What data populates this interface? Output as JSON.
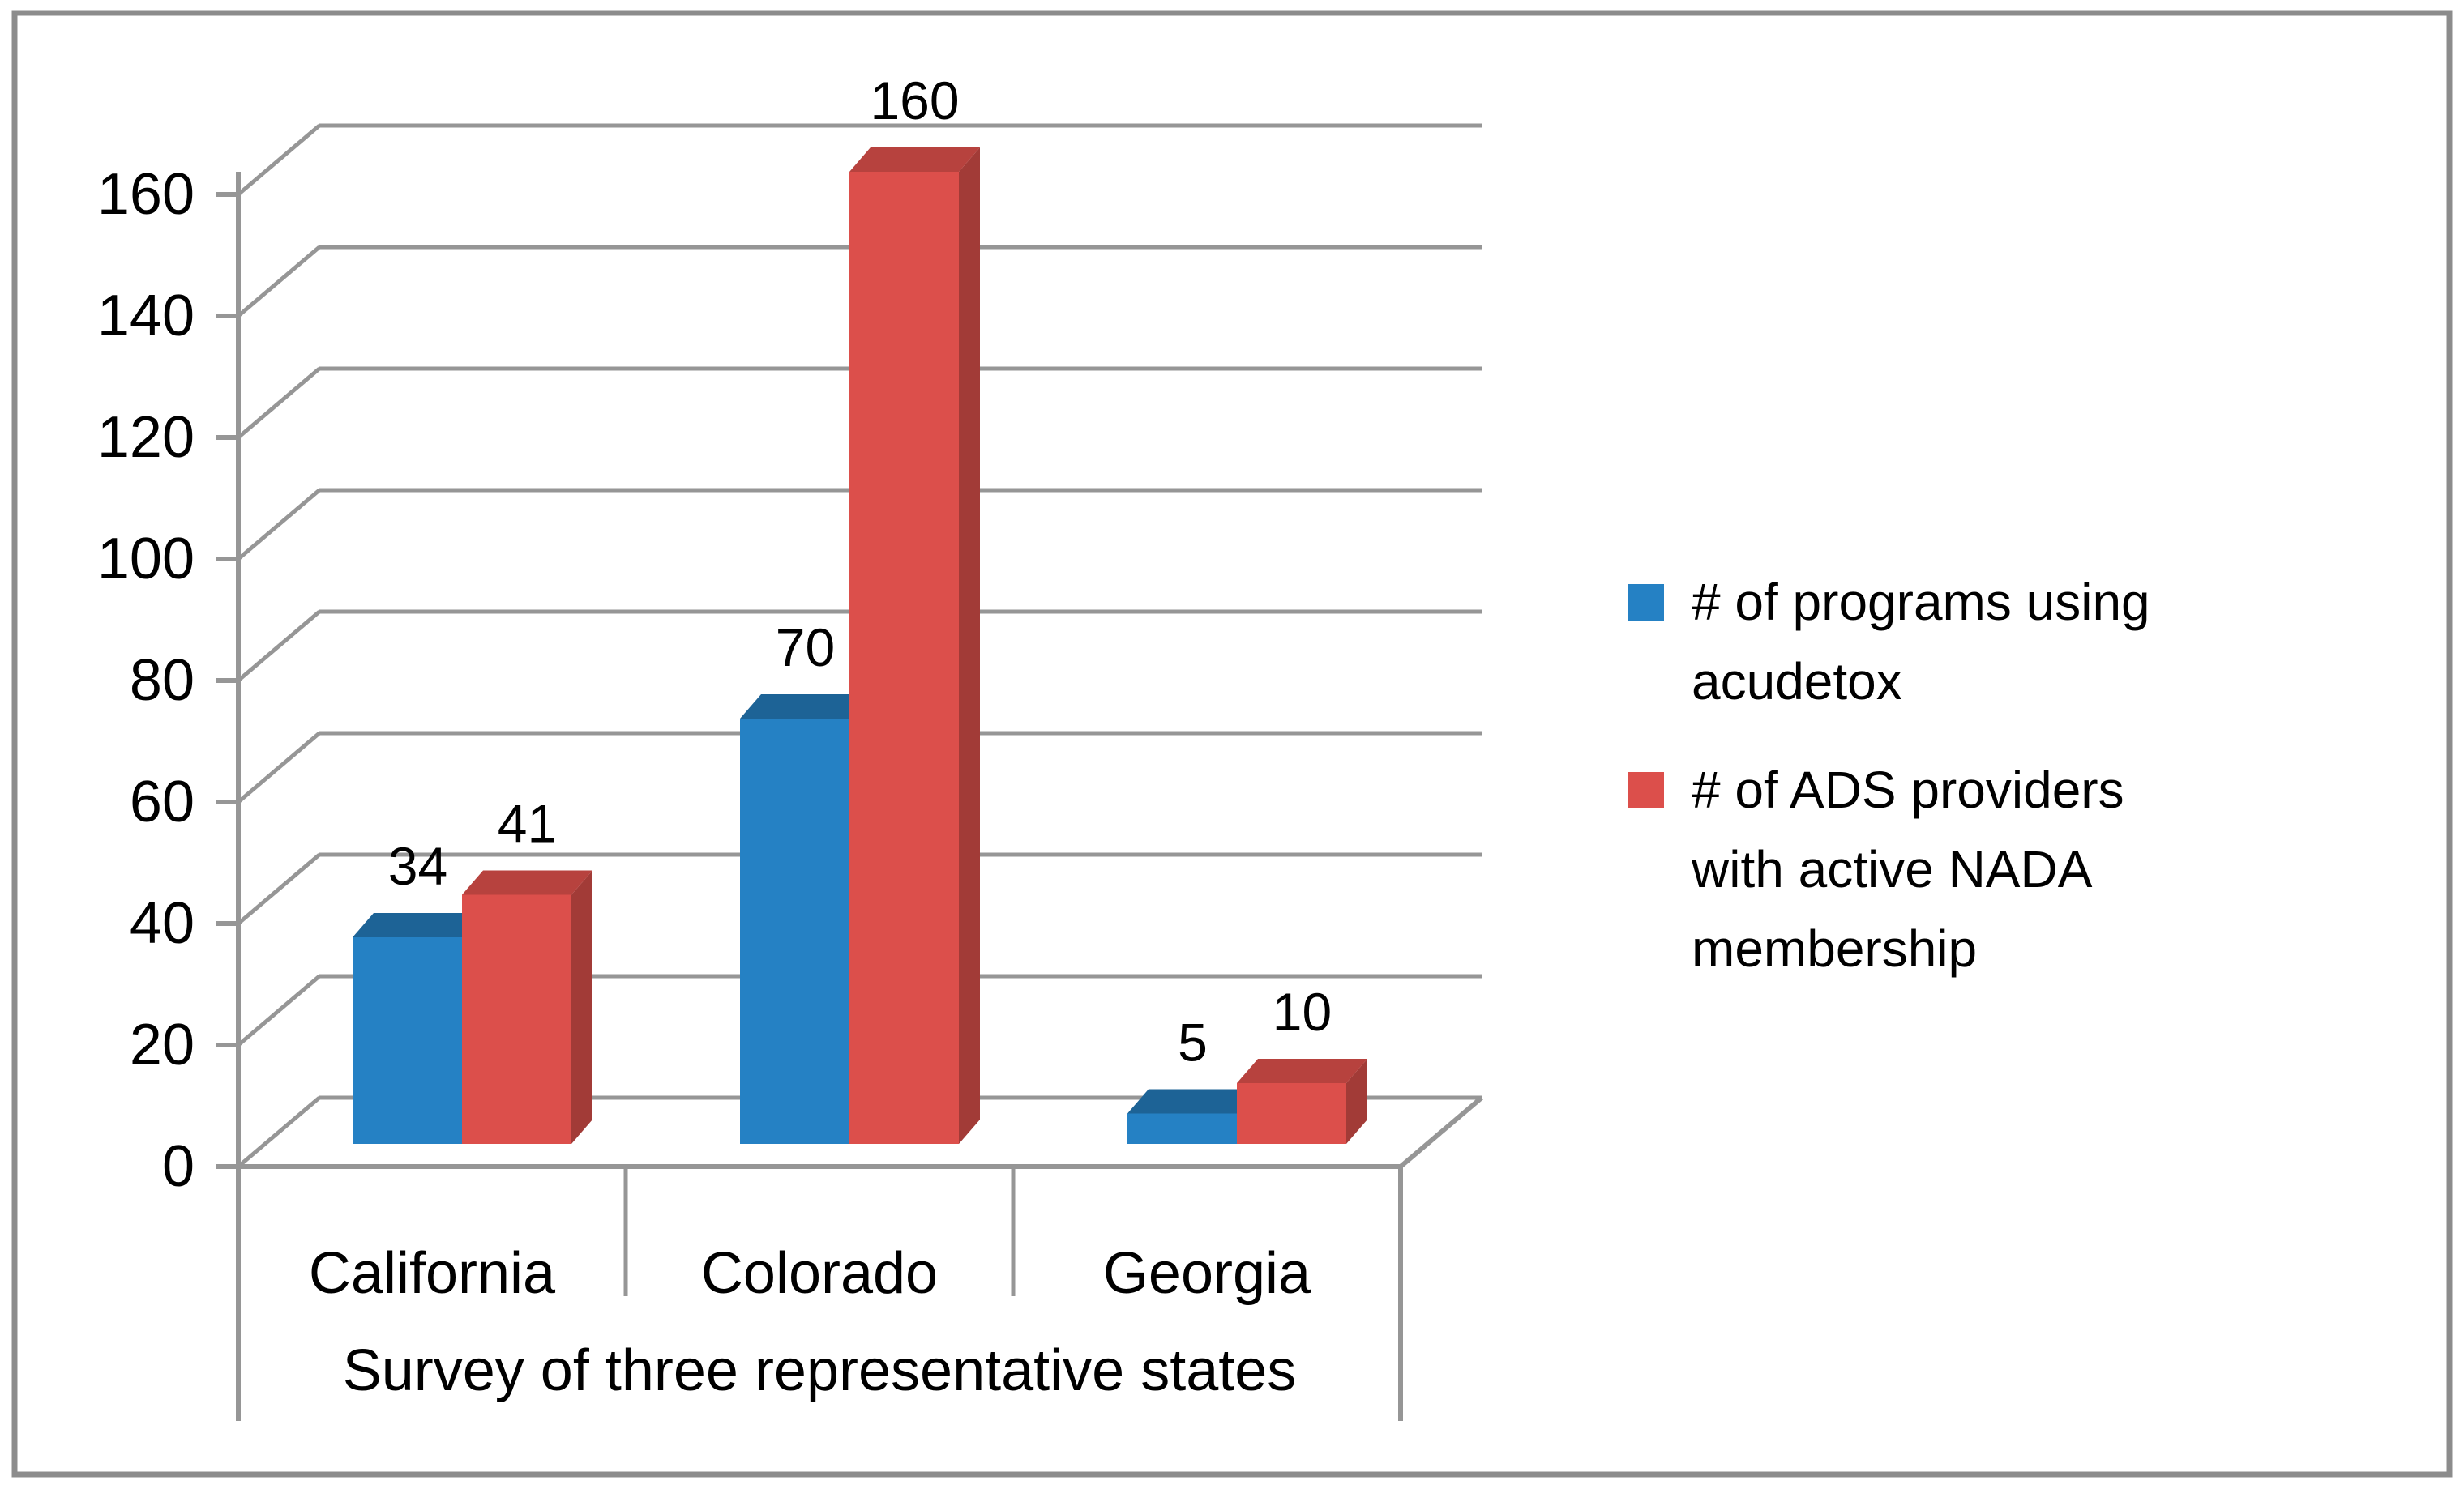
{
  "chart_data": {
    "type": "bar",
    "style": "3d-clustered-column",
    "title": "",
    "xlabel": "Survey of three representative states",
    "ylabel": "",
    "categories": [
      "California",
      "Colorado",
      "Georgia"
    ],
    "series": [
      {
        "name": "# of programs using acudetox",
        "values": [
          34,
          70,
          5
        ],
        "color": "#2581C4",
        "color_top": "#1D6396",
        "color_side": "#174F78"
      },
      {
        "name": "# of ADS providers with active NADA membership",
        "values": [
          41,
          160,
          10
        ],
        "color": "#DC4F4B",
        "color_top": "#B7423E",
        "color_side": "#A23B37"
      }
    ],
    "data_labels_visible": true,
    "ylim": [
      0,
      160
    ],
    "ytick_step": 20,
    "yticks": [
      "0",
      "20",
      "40",
      "60",
      "80",
      "100",
      "120",
      "140",
      "160"
    ],
    "grid": true,
    "legend_position": "right"
  },
  "colors": {
    "grid": "#969696",
    "axis": "#969696",
    "frame_border": "#8C8C8C",
    "background": "#FFFFFF",
    "text": "#000000"
  }
}
